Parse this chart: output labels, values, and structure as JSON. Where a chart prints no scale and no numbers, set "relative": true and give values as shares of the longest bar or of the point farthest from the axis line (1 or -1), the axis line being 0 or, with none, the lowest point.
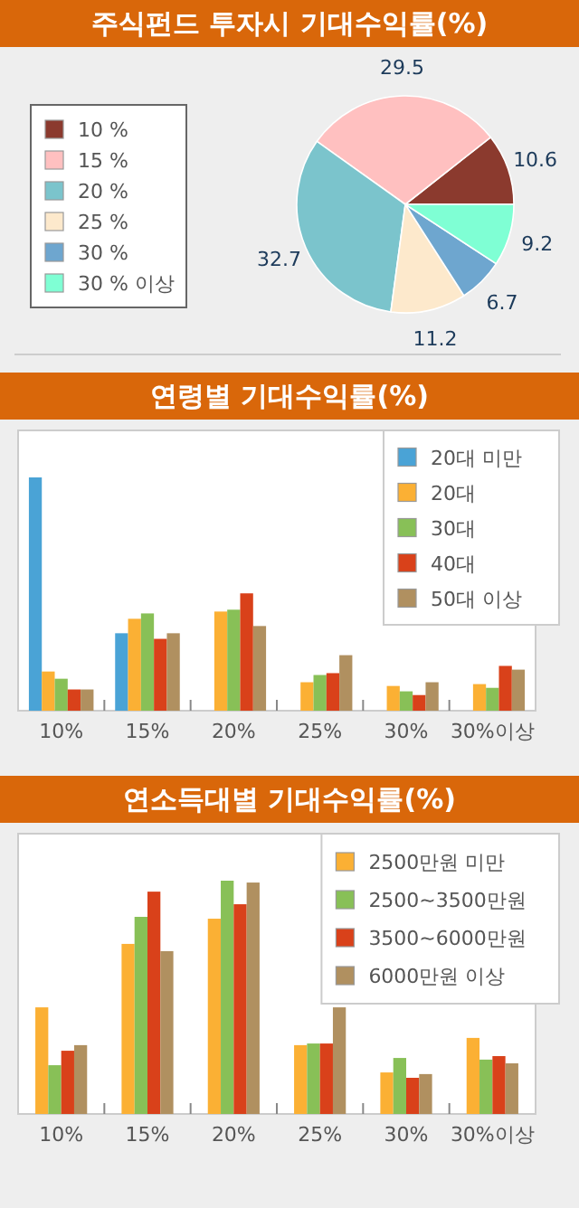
{
  "chart_data": [
    {
      "type": "pie",
      "title": "주식펀드 투자시 기대수익률(%)",
      "categories": [
        "10 %",
        "15 %",
        "20 %",
        "25 %",
        "30 %",
        "30 % 이상"
      ],
      "values": [
        10.6,
        29.5,
        32.7,
        11.2,
        6.7,
        9.2
      ],
      "colors": [
        "#8b3a2e",
        "#ffc0c0",
        "#7bc4cc",
        "#fde9cc",
        "#6ea6cf",
        "#7fffd4"
      ],
      "data_labels": true,
      "legend": "left"
    },
    {
      "type": "bar",
      "title": "연령별 기대수익률(%)",
      "relative": true,
      "legend": "top right",
      "categories": [
        "10%",
        "15%",
        "20%",
        "25%",
        "30%",
        "30%이상"
      ],
      "series": [
        {
          "name": "20대 미만",
          "color": "#4aa3d6",
          "values": [
            1,
            0.332,
            null,
            null,
            null,
            null
          ]
        },
        {
          "name": "20대",
          "color": "#fbb034",
          "values": [
            0.168,
            0.394,
            0.425,
            0.122,
            0.106,
            0.114
          ]
        },
        {
          "name": "30대",
          "color": "#88c057",
          "values": [
            0.137,
            0.417,
            0.433,
            0.153,
            0.083,
            0.098
          ]
        },
        {
          "name": "40대",
          "color": "#d9411a",
          "values": [
            0.091,
            0.308,
            0.503,
            0.161,
            0.067,
            0.192
          ]
        },
        {
          "name": "50대 이상",
          "color": "#b09060",
          "values": [
            0.091,
            0.332,
            0.363,
            0.238,
            0.122,
            0.176
          ]
        }
      ]
    },
    {
      "type": "bar",
      "title": "연소득대별 기대수익률(%)",
      "relative": true,
      "legend": "top right",
      "categories": [
        "10%",
        "15%",
        "20%",
        "25%",
        "30%",
        "30%이상"
      ],
      "series": [
        {
          "name": "2500만원 미만",
          "color": "#fbb034",
          "values": [
            0.457,
            0.729,
            0.837,
            0.295,
            0.178,
            0.326
          ]
        },
        {
          "name": "2500~3500만원",
          "color": "#88c057",
          "values": [
            0.209,
            0.845,
            1,
            0.302,
            0.24,
            0.233
          ]
        },
        {
          "name": "3500~6000만원",
          "color": "#d9411a",
          "values": [
            0.271,
            0.953,
            0.899,
            0.302,
            0.155,
            0.248
          ]
        },
        {
          "name": "6000만원 이상",
          "color": "#b09060",
          "values": [
            0.295,
            0.698,
            0.992,
            0.457,
            0.171,
            0.217
          ]
        }
      ]
    }
  ]
}
